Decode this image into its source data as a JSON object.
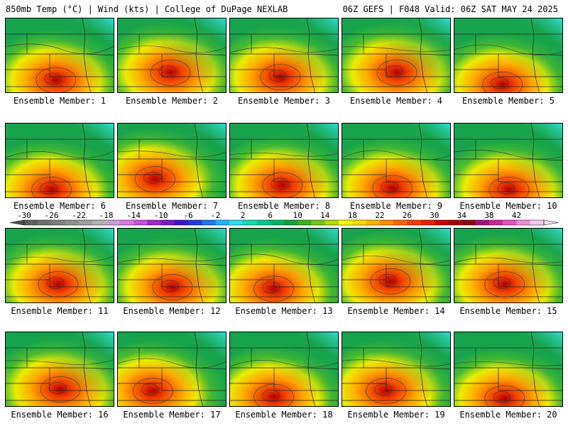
{
  "header": {
    "left": "850mb Temp (°C) | Wind (kts) | College of DuPage NEXLAB",
    "right": "06Z GEFS | F048 Valid: 06Z SAT MAY 24 2025"
  },
  "panels": [
    {
      "label": "Ensemble Member: 1",
      "hot": [
        0.46,
        0.82
      ]
    },
    {
      "label": "Ensemble Member: 2",
      "hot": [
        0.48,
        0.72
      ]
    },
    {
      "label": "Ensemble Member: 3",
      "hot": [
        0.46,
        0.78
      ]
    },
    {
      "label": "Ensemble Member: 4",
      "hot": [
        0.5,
        0.72
      ]
    },
    {
      "label": "Ensemble Member: 5",
      "hot": [
        0.44,
        0.88
      ]
    },
    {
      "label": "Ensemble Member: 6",
      "hot": [
        0.42,
        0.88
      ]
    },
    {
      "label": "Ensemble Member: 7",
      "hot": [
        0.34,
        0.74
      ]
    },
    {
      "label": "Ensemble Member: 8",
      "hot": [
        0.48,
        0.82
      ]
    },
    {
      "label": "Ensemble Member: 9",
      "hot": [
        0.46,
        0.86
      ]
    },
    {
      "label": "Ensemble Member: 10",
      "hot": [
        0.5,
        0.88
      ]
    },
    {
      "label": "Ensemble Member: 11",
      "hot": [
        0.48,
        0.74
      ]
    },
    {
      "label": "Ensemble Member: 12",
      "hot": [
        0.5,
        0.78
      ]
    },
    {
      "label": "Ensemble Member: 13",
      "hot": [
        0.4,
        0.8
      ]
    },
    {
      "label": "Ensemble Member: 14",
      "hot": [
        0.44,
        0.7
      ]
    },
    {
      "label": "Ensemble Member: 15",
      "hot": [
        0.46,
        0.74
      ]
    },
    {
      "label": "Ensemble Member: 16",
      "hot": [
        0.5,
        0.76
      ]
    },
    {
      "label": "Ensemble Member: 17",
      "hot": [
        0.32,
        0.78
      ]
    },
    {
      "label": "Ensemble Member: 18",
      "hot": [
        0.4,
        0.86
      ]
    },
    {
      "label": "Ensemble Member: 19",
      "hot": [
        0.4,
        0.78
      ]
    },
    {
      "label": "Ensemble Member: 20",
      "hot": [
        0.46,
        0.88
      ]
    }
  ],
  "colorbar": {
    "labels": [
      "-30",
      "-26",
      "-22",
      "-18",
      "-14",
      "-10",
      "-6",
      "-2",
      "2",
      "6",
      "10",
      "14",
      "18",
      "22",
      "26",
      "30",
      "34",
      "38",
      "42"
    ],
    "colors": [
      "#5f5f5f",
      "#6f6f6f",
      "#7f7f7f",
      "#8f8f8f",
      "#a0a0a0",
      "#b4b4b4",
      "#c8a0dc",
      "#dc78e6",
      "#c850dc",
      "#a028c8",
      "#7814c8",
      "#3c14c8",
      "#1e3cdc",
      "#1e78f0",
      "#1eb4ff",
      "#32dcf0",
      "#14dcb4",
      "#00c88c",
      "#00b464",
      "#14a03c",
      "#3cb41e",
      "#78c814",
      "#b4dc00",
      "#ffff00",
      "#ffdc00",
      "#ffb400",
      "#ff8c00",
      "#ff6400",
      "#ff3c00",
      "#f01e00",
      "#c80000",
      "#a00000",
      "#8c0014",
      "#a0147a",
      "#c8289c",
      "#e650c8",
      "#f08cdc",
      "#f8c8ec"
    ]
  },
  "palette": {
    "teal": "#33e0dc",
    "green": "#18a44c",
    "lightgreen": "#4cbc2c",
    "yellow": "#ecec00",
    "orange": "#ffa800",
    "red": "#f03c00",
    "darkred": "#b00000"
  }
}
